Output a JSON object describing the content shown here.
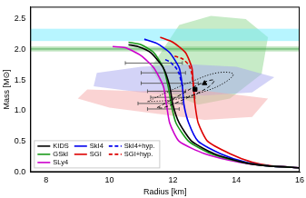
{
  "chart_data": {
    "type": "line",
    "x_label": "Radius [km]",
    "y_label": "Mass [M⊙]",
    "xlim": [
      7.5,
      16
    ],
    "ylim": [
      0,
      2.7
    ],
    "xticks": [
      8,
      10,
      12,
      14,
      16
    ],
    "yticks": [
      {
        "value": 0,
        "label": "0.0"
      },
      0.5,
      {
        "value": 1,
        "label": "1.0"
      },
      1.5,
      {
        "value": 2,
        "label": "2.0"
      },
      2.5
    ],
    "grid": false,
    "legend": "lower left",
    "series": [
      {
        "type": "region",
        "color": "#8fd88f",
        "x": [
          11.3,
          12.2,
          13.2,
          14.3,
          15.0,
          14.8,
          13.8,
          12.8,
          11.8
        ],
        "values": [
          1.7,
          2.4,
          2.55,
          2.5,
          2.2,
          1.6,
          1.2,
          1.1,
          1.3
        ]
      },
      {
        "type": "region",
        "color": "#a8a8f0",
        "x": [
          9.5,
          9.6,
          11.0,
          12.5,
          14.0,
          15.2,
          14.5,
          13.0,
          11.0
        ],
        "values": [
          1.4,
          1.62,
          1.72,
          1.76,
          1.72,
          1.55,
          1.3,
          1.25,
          1.3
        ]
      },
      {
        "type": "region",
        "color": "#f5a8a8",
        "x": [
          9.0,
          9.3,
          11.0,
          12.5,
          15.0,
          14.5,
          13.0,
          11.5,
          10.0
        ],
        "values": [
          1.2,
          1.35,
          1.32,
          1.36,
          1.2,
          0.9,
          0.85,
          0.95,
          1.05
        ]
      },
      {
        "type": "band",
        "color": "#70ecff",
        "values": [
          2.14,
          2.34
        ]
      },
      {
        "type": "band",
        "color": "#7cc77c",
        "values": [
          1.97,
          2.05
        ]
      },
      {
        "type": "band",
        "color": "#2e9e3e",
        "values": [
          2.0,
          2.02
        ]
      },
      {
        "type": "errorbar",
        "color": "#555555",
        "x": [
          11.4,
          11.7,
          11.9,
          11.8,
          12.0,
          11.6,
          11.7
        ],
        "values": [
          1.78,
          1.62,
          1.45,
          1.32,
          1.22,
          1.12,
          1.03
        ],
        "x_error": [
          0.9,
          0.7,
          0.9,
          0.6,
          0.7,
          0.7,
          0.5
        ]
      },
      {
        "type": "contour",
        "color": "#000000",
        "line_style": "dotted",
        "x": [
          11.2,
          11.8,
          12.6,
          13.4,
          13.9,
          13.6,
          12.9,
          12.0,
          11.2
        ],
        "values": [
          1.15,
          1.3,
          1.48,
          1.62,
          1.6,
          1.45,
          1.3,
          1.18,
          1.15
        ]
      },
      {
        "type": "contour",
        "color": "#000000",
        "line_style": "dashed",
        "x": [
          11.5,
          12.2,
          12.9,
          13.3,
          13.1,
          12.4,
          11.7,
          11.5
        ],
        "values": [
          1.05,
          1.25,
          1.45,
          1.5,
          1.38,
          1.2,
          1.05,
          1.05
        ]
      },
      {
        "type": "scatter",
        "color": "#000000",
        "marker": "square",
        "x": [
          12.7
        ],
        "values": [
          1.35
        ]
      },
      {
        "type": "scatter",
        "color": "#000000",
        "marker": "triangle",
        "x": [
          13.0
        ],
        "values": [
          1.45
        ]
      },
      {
        "type": "line",
        "name": "KIDS",
        "color": "#000000",
        "line_style": "solid",
        "x": [
          16.0,
          15.0,
          14.2,
          13.3,
          12.6,
          12.2,
          12.0,
          11.9,
          11.7,
          11.3,
          10.9,
          10.6
        ],
        "values": [
          0.07,
          0.1,
          0.16,
          0.3,
          0.5,
          0.8,
          1.1,
          1.4,
          1.7,
          1.95,
          2.05,
          2.08
        ]
      },
      {
        "type": "line",
        "name": "GSkI",
        "color": "#1a9a1a",
        "line_style": "solid",
        "x": [
          16.0,
          15.0,
          14.2,
          13.2,
          12.5,
          12.1,
          11.95,
          11.85,
          11.7,
          11.4,
          11.0,
          10.6
        ],
        "values": [
          0.07,
          0.1,
          0.16,
          0.3,
          0.5,
          0.8,
          1.1,
          1.4,
          1.7,
          1.95,
          2.08,
          2.12
        ]
      },
      {
        "type": "line",
        "name": "SLy4",
        "color": "#cc00cc",
        "line_style": "solid",
        "x": [
          16.0,
          15.0,
          14.1,
          13.0,
          12.2,
          11.9,
          11.8,
          11.7,
          11.4,
          11.0,
          10.5,
          10.1
        ],
        "values": [
          0.07,
          0.1,
          0.16,
          0.3,
          0.5,
          0.8,
          1.1,
          1.4,
          1.7,
          1.9,
          2.03,
          2.05
        ]
      },
      {
        "type": "line",
        "name": "SkI4",
        "color": "#0000ee",
        "line_style": "solid",
        "x": [
          16.0,
          15.0,
          14.3,
          13.5,
          12.8,
          12.5,
          12.35,
          12.3,
          12.2,
          11.9,
          11.5,
          11.1
        ],
        "values": [
          0.07,
          0.1,
          0.16,
          0.3,
          0.5,
          0.8,
          1.1,
          1.4,
          1.7,
          1.95,
          2.1,
          2.17
        ]
      },
      {
        "type": "line",
        "name": "SGI",
        "color": "#dd0000",
        "line_style": "solid",
        "x": [
          16.0,
          15.1,
          14.5,
          13.8,
          13.1,
          12.8,
          12.7,
          12.65,
          12.6,
          12.4,
          12.0,
          11.6
        ],
        "values": [
          0.07,
          0.1,
          0.16,
          0.3,
          0.5,
          0.8,
          1.1,
          1.4,
          1.7,
          1.95,
          2.12,
          2.2
        ]
      },
      {
        "type": "line",
        "name": "SkI4+hyp.",
        "color": "#0000ee",
        "line_style": "dashed",
        "x": [
          12.3,
          12.2,
          12.1,
          11.9,
          11.7
        ],
        "values": [
          1.4,
          1.6,
          1.7,
          1.8,
          1.85
        ]
      },
      {
        "type": "line",
        "name": "SGI+hyp.",
        "color": "#dd0000",
        "line_style": "dashed",
        "x": [
          12.65,
          12.6,
          12.5,
          12.3,
          12.0
        ],
        "values": [
          1.4,
          1.6,
          1.75,
          1.85,
          1.9
        ]
      }
    ]
  }
}
